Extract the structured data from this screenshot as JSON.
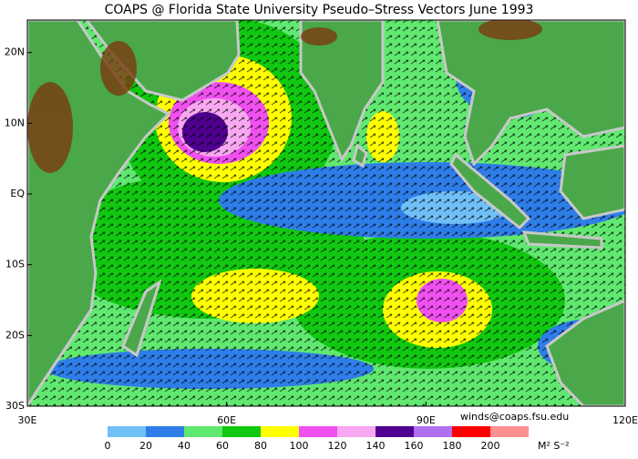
{
  "title": "COAPS @ Florida State University Pseudo–Stress Vectors  June 1993",
  "map": {
    "lonlim": [
      30,
      120
    ],
    "latlim": [
      -30,
      24.6
    ],
    "lon_ticks": [
      {
        "value": 30,
        "label": "30E"
      },
      {
        "value": 60,
        "label": "60E"
      },
      {
        "value": 90,
        "label": "90E"
      },
      {
        "value": 120,
        "label": "120E"
      }
    ],
    "lat_ticks": [
      {
        "value": 20,
        "label": "20N"
      },
      {
        "value": 10,
        "label": "10N"
      },
      {
        "value": 0,
        "label": "EQ"
      },
      {
        "value": -10,
        "label": "10S"
      },
      {
        "value": -20,
        "label": "20S"
      },
      {
        "value": -30,
        "label": "30S"
      }
    ]
  },
  "colorbar": {
    "ticks": [
      0,
      20,
      40,
      60,
      80,
      100,
      120,
      140,
      160,
      180,
      200
    ],
    "colors": [
      "#70c0f8",
      "#2f7de8",
      "#60e870",
      "#10c810",
      "#ffff00",
      "#f050f0",
      "#f8a8f0",
      "#500090",
      "#b070f0",
      "#ff0000",
      "#ff9090"
    ],
    "units": "M² S⁻²"
  },
  "credit": "winds@coaps.fsu.edu"
}
